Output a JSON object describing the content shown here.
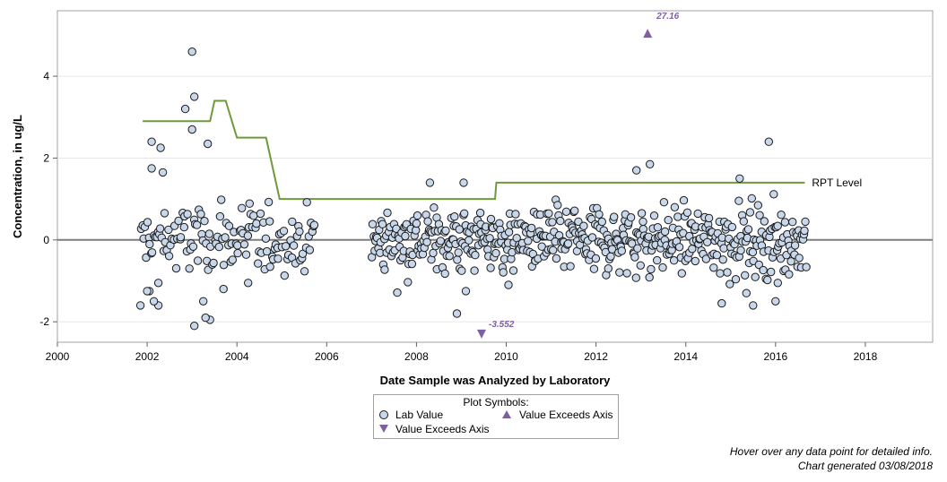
{
  "chart_data": {
    "type": "scatter",
    "ylabel": "Concentration, in ug/L",
    "xlabel": "Date Sample was Analyzed by Laboratory",
    "xlim": [
      2000,
      2019.5
    ],
    "ylim": [
      -2.5,
      5.6
    ],
    "x_ticks": [
      2000,
      2002,
      2004,
      2006,
      2008,
      2010,
      2012,
      2014,
      2016,
      2018
    ],
    "y_ticks": [
      -2,
      0,
      2,
      4
    ],
    "x_tick_labels": [
      "2000",
      "2002",
      "2004",
      "2006",
      "2008",
      "2010",
      "2012",
      "2014",
      "2016",
      "2018"
    ],
    "y_tick_labels": [
      "-2",
      "0",
      "2",
      "4"
    ],
    "grid": "horizontal",
    "zero_line": 0,
    "rpt_label": "RPT Level",
    "rpt_level": [
      [
        2001.9,
        2.9
      ],
      [
        2003.4,
        2.9
      ],
      [
        2003.5,
        3.4
      ],
      [
        2003.75,
        3.4
      ],
      [
        2004.0,
        2.5
      ],
      [
        2004.65,
        2.5
      ],
      [
        2004.95,
        1.0
      ],
      [
        2009.75,
        1.0
      ],
      [
        2009.78,
        1.4
      ],
      [
        2016.65,
        1.4
      ]
    ],
    "exceed_high": {
      "x": 2013.15,
      "label": "27.16"
    },
    "exceed_low": {
      "x": 2009.45,
      "label": "-3.552"
    },
    "outliers": [
      [
        2003.0,
        4.6
      ],
      [
        2003.05,
        3.5
      ],
      [
        2002.85,
        3.2
      ],
      [
        2003.0,
        2.7
      ],
      [
        2003.35,
        2.35
      ],
      [
        2002.1,
        2.4
      ],
      [
        2002.3,
        2.25
      ],
      [
        2002.1,
        1.75
      ],
      [
        2002.35,
        1.65
      ],
      [
        2012.9,
        1.7
      ],
      [
        2013.2,
        1.85
      ],
      [
        2015.2,
        1.5
      ],
      [
        2015.85,
        2.4
      ],
      [
        2008.3,
        1.4
      ],
      [
        2009.05,
        1.4
      ],
      [
        2008.9,
        -1.8
      ],
      [
        2003.05,
        -2.1
      ],
      [
        2003.4,
        -1.95
      ],
      [
        2003.3,
        -1.9
      ],
      [
        2001.85,
        -1.6
      ],
      [
        2002.25,
        -1.6
      ],
      [
        2002.15,
        -1.5
      ],
      [
        2003.25,
        -1.5
      ],
      [
        2002.05,
        -1.25
      ],
      [
        2002.0,
        -1.25
      ],
      [
        2003.7,
        -1.2
      ],
      [
        2002.25,
        -1.05
      ],
      [
        2004.25,
        -1.05
      ],
      [
        2014.8,
        -1.55
      ],
      [
        2015.5,
        -1.6
      ],
      [
        2015.35,
        -1.3
      ],
      [
        2016.0,
        -1.5
      ],
      [
        2016.05,
        -1.05
      ],
      [
        2010.05,
        -1.1
      ],
      [
        2009.1,
        -1.25
      ]
    ],
    "lab_value_segments": [
      {
        "x_start": 2001.85,
        "x_end": 2005.75,
        "n": 135
      },
      {
        "x_start": 2007.0,
        "x_end": 2016.7,
        "n": 500
      }
    ],
    "legend": {
      "title": "Plot Symbols:",
      "items": [
        "Lab Value",
        "Value Exceeds Axis",
        "Value Exceeds Axis"
      ]
    }
  },
  "colors": {
    "point_fill": "#c8d8ea",
    "point_stroke": "#1a1a1a",
    "rpt_line": "#6e9a3a",
    "exceed": "#7e5fa0",
    "zero_line": "#7f7f7f",
    "grid": "#e6e6e6"
  },
  "footer": {
    "hover_note": "Hover over any data point for detailed info.",
    "generated": "Chart generated 03/08/2018"
  }
}
